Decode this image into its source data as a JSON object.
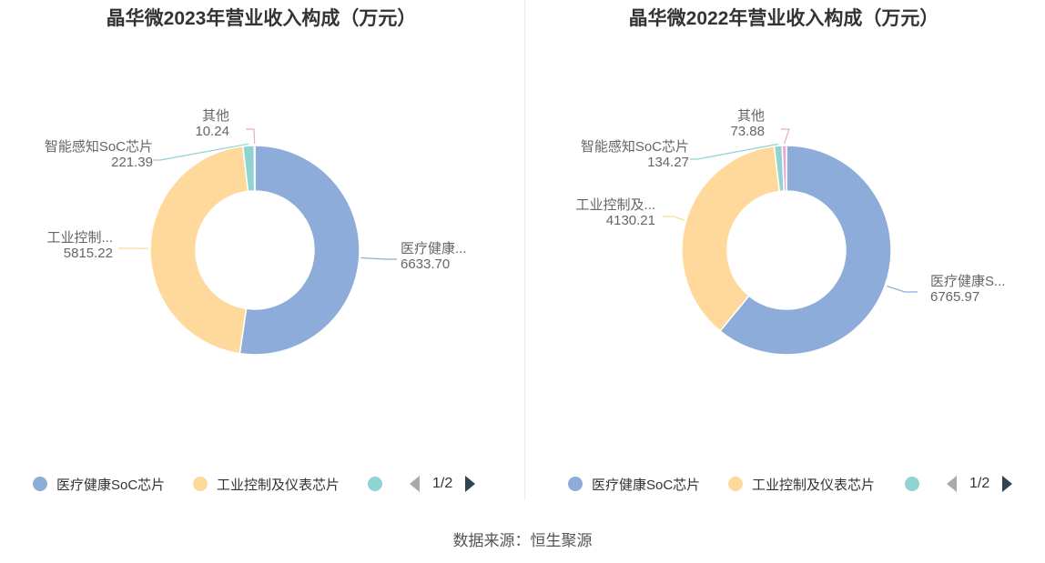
{
  "colors": {
    "medical": "#8eacd9",
    "industrial": "#fed99b",
    "smart": "#8fd3d3",
    "other": "#e9a9d4"
  },
  "chart_data": [
    {
      "type": "pie",
      "title": "晶华微2023年营业收入构成（万元）",
      "slices": [
        {
          "name": "医疗健康SoC芯片",
          "value": 6633.7,
          "label": "医疗健康...",
          "value_label": "6633.70"
        },
        {
          "name": "工业控制及仪表芯片",
          "value": 5815.22,
          "label": "工业控制...",
          "value_label": "5815.22"
        },
        {
          "name": "智能感知SoC芯片",
          "value": 221.39,
          "label": "智能感知SoC芯片",
          "value_label": "221.39"
        },
        {
          "name": "其他",
          "value": 10.24,
          "label": "其他",
          "value_label": "10.24"
        }
      ],
      "legend": {
        "items": [
          "医疗健康SoC芯片",
          "工业控制及仪表芯片"
        ],
        "page": "1/2",
        "placement": "bottom"
      }
    },
    {
      "type": "pie",
      "title": "晶华微2022年营业收入构成（万元）",
      "slices": [
        {
          "name": "医疗健康SoC芯片",
          "value": 6765.97,
          "label": "医疗健康S...",
          "value_label": "6765.97"
        },
        {
          "name": "工业控制及仪表芯片",
          "value": 4130.21,
          "label": "工业控制及...",
          "value_label": "4130.21"
        },
        {
          "name": "智能感知SoC芯片",
          "value": 134.27,
          "label": "智能感知SoC芯片",
          "value_label": "134.27"
        },
        {
          "name": "其他",
          "value": 73.88,
          "label": "其他",
          "value_label": "73.88"
        }
      ],
      "legend": {
        "items": [
          "医疗健康SoC芯片",
          "工业控制及仪表芯片"
        ],
        "page": "1/2",
        "placement": "bottom"
      }
    }
  ],
  "source": "数据来源：恒生聚源"
}
